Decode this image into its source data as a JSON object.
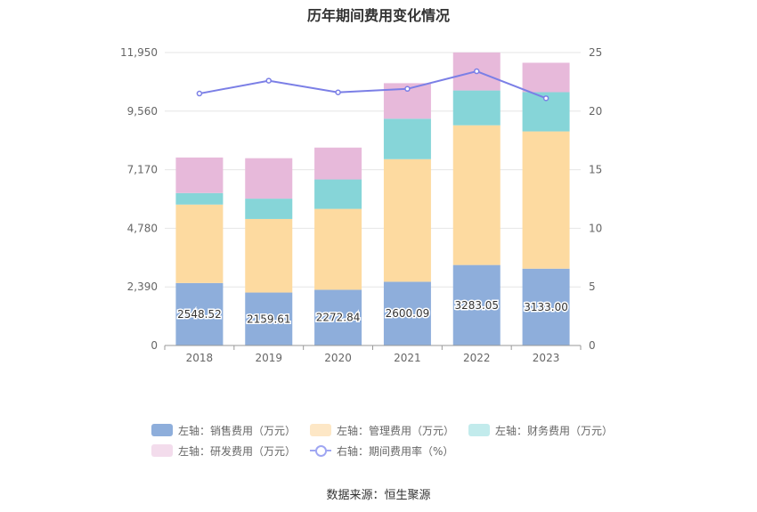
{
  "title": "历年期间费用变化情况",
  "source": "数据来源：恒生聚源",
  "legend": [
    {
      "label": "左轴：销售费用（万元）",
      "color": "#8eaedb",
      "kind": "bar"
    },
    {
      "label": "左轴：管理费用（万元）",
      "color": "#fddaa0",
      "kind": "bar"
    },
    {
      "label": "左轴：财务费用（万元）",
      "color": "#86d5d8",
      "kind": "bar"
    },
    {
      "label": "左轴：研发费用（万元）",
      "color": "#e7b9da",
      "kind": "bar"
    },
    {
      "label": "右轴：期间费用率（%）",
      "color": "#7b7fe6",
      "kind": "line"
    }
  ],
  "chart_data": {
    "type": "bar",
    "stacked": true,
    "categories": [
      "2018",
      "2019",
      "2020",
      "2021",
      "2022",
      "2023"
    ],
    "series": [
      {
        "name": "左轴：销售费用（万元）",
        "axis": "left",
        "color": "#8eaedb",
        "values": [
          2548.52,
          2159.61,
          2272.84,
          2600.09,
          3283.05,
          3133.0
        ],
        "labels": [
          "2548.52",
          "2159.61",
          "2272.84",
          "2600.09",
          "3283.05",
          "3133.00"
        ]
      },
      {
        "name": "左轴：管理费用（万元）",
        "axis": "left",
        "color": "#fddaa0",
        "values": [
          3200,
          3000,
          3300,
          5000,
          5700,
          5600
        ]
      },
      {
        "name": "左轴：财务费用（万元）",
        "axis": "left",
        "color": "#86d5d8",
        "values": [
          470,
          830,
          1200,
          1650,
          1420,
          1600
        ]
      },
      {
        "name": "左轴：研发费用（万元）",
        "axis": "left",
        "color": "#e7b9da",
        "values": [
          1450,
          1650,
          1300,
          1450,
          1550,
          1200
        ]
      },
      {
        "name": "右轴：期间费用率（%）",
        "axis": "right",
        "type": "line",
        "color": "#7b7fe6",
        "values": [
          21.5,
          22.6,
          21.6,
          21.9,
          23.4,
          21.1
        ]
      }
    ],
    "y_left": {
      "ticks": [
        0,
        2390,
        4780,
        7170,
        9560,
        11950
      ],
      "tick_labels": [
        "0",
        "2,390",
        "4,780",
        "7,170",
        "9,560",
        "11,950"
      ],
      "range": [
        0,
        11950
      ]
    },
    "y_right": {
      "ticks": [
        0,
        5,
        10,
        15,
        20,
        25
      ],
      "tick_labels": [
        "0",
        "5",
        "10",
        "15",
        "20",
        "25"
      ],
      "range": [
        0,
        25
      ]
    },
    "grid": true,
    "legend_position": "bottom"
  }
}
